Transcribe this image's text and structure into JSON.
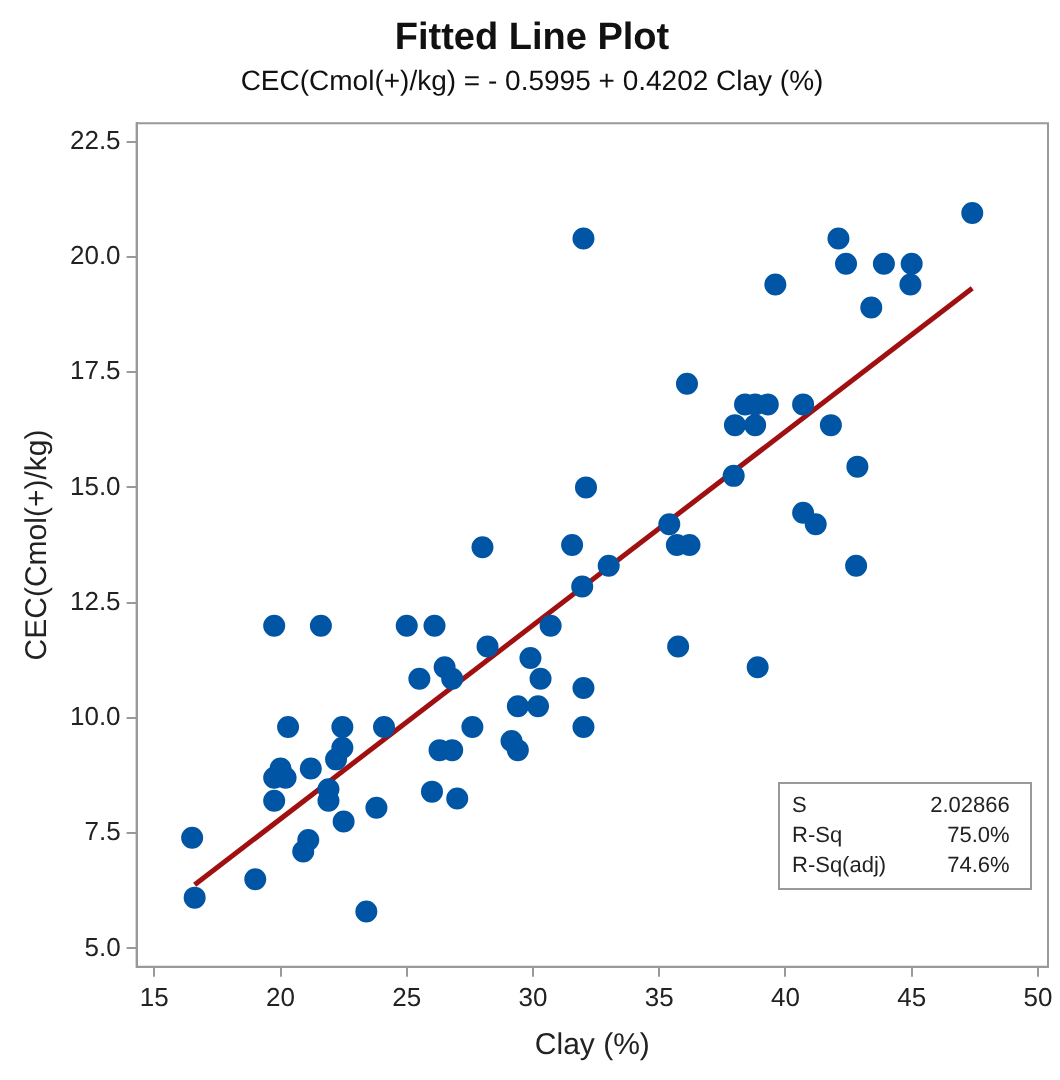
{
  "chart_data": {
    "type": "scatter",
    "title": "Fitted Line Plot",
    "subtitle": "CEC(Cmol(+)/kg) = - 0.5995 + 0.4202 Clay (%)",
    "xlabel": "Clay (%)",
    "ylabel": "CEC(Cmol(+)/kg)",
    "xlim": [
      14.3,
      50.4
    ],
    "ylim": [
      4.6,
      22.9
    ],
    "xticks": [
      15,
      20,
      25,
      30,
      35,
      40,
      45,
      50
    ],
    "yticks": [
      {
        "value": 5,
        "label": "5.0"
      },
      {
        "value": 7.5,
        "label": "7.5"
      },
      {
        "value": 10,
        "label": "10.0"
      },
      {
        "value": 12.5,
        "label": "12.5"
      },
      {
        "value": 15,
        "label": "15.0"
      },
      {
        "value": 17.5,
        "label": "17.5"
      },
      {
        "value": 20,
        "label": "20.0"
      },
      {
        "value": 22.5,
        "label": "22.5"
      }
    ],
    "grid": false,
    "legend": false,
    "series": [
      {
        "color": "#0055a5",
        "marker": "circle",
        "x": [
          16.5,
          16.6,
          19.0,
          19.75,
          21.6,
          20.3,
          19.75,
          20.0,
          20.2,
          19.75,
          21.2,
          20.9,
          21.1,
          21.9,
          21.9,
          22.2,
          22.45,
          22.45,
          22.5,
          23.8,
          23.4,
          24.1,
          25.0,
          26.1,
          25.5,
          26.5,
          26.8,
          26.0,
          26.3,
          26.8,
          27.0,
          27.6,
          28.0,
          28.2,
          29.15,
          29.4,
          29.4,
          29.9,
          30.3,
          30.2,
          30.7,
          31.55,
          31.95,
          32.0,
          32.0,
          32.0,
          32.1,
          36.1,
          39.6,
          42.1,
          42.4,
          43.9,
          45.0,
          44.95,
          47.4,
          43.4,
          38.4,
          38.8,
          39.3,
          40.7,
          38.0,
          38.8,
          41.8,
          37.95,
          42.85,
          35.4,
          40.7,
          41.2,
          35.7,
          36.2,
          33.0,
          42.8,
          35.75,
          38.9
        ],
        "values": [
          7.4,
          6.1,
          6.5,
          12.0,
          12.0,
          9.8,
          8.7,
          8.9,
          8.7,
          8.2,
          8.9,
          7.1,
          7.35,
          8.45,
          8.2,
          9.1,
          9.35,
          9.8,
          7.75,
          8.05,
          5.8,
          9.8,
          12.0,
          12.0,
          10.85,
          11.1,
          10.85,
          8.4,
          9.3,
          9.3,
          8.25,
          9.8,
          13.7,
          11.55,
          9.5,
          9.3,
          10.25,
          11.3,
          10.85,
          10.25,
          12.0,
          13.75,
          12.85,
          10.65,
          9.8,
          20.4,
          15.0,
          17.25,
          19.4,
          20.4,
          19.85,
          19.85,
          19.85,
          19.4,
          20.95,
          18.9,
          16.8,
          16.8,
          16.8,
          16.8,
          16.35,
          16.35,
          16.35,
          15.25,
          15.45,
          14.2,
          14.45,
          14.2,
          13.75,
          13.75,
          13.3,
          13.3,
          11.55,
          11.1
        ]
      },
      {
        "type": "line",
        "color": "#a01010",
        "x": [
          16.6,
          47.4
        ],
        "values": [
          6.38,
          19.32
        ]
      }
    ],
    "annotations": [
      "S",
      "2.02866",
      "R-Sq",
      "75.0%",
      "R-Sq(adj)",
      "74.6%"
    ]
  }
}
